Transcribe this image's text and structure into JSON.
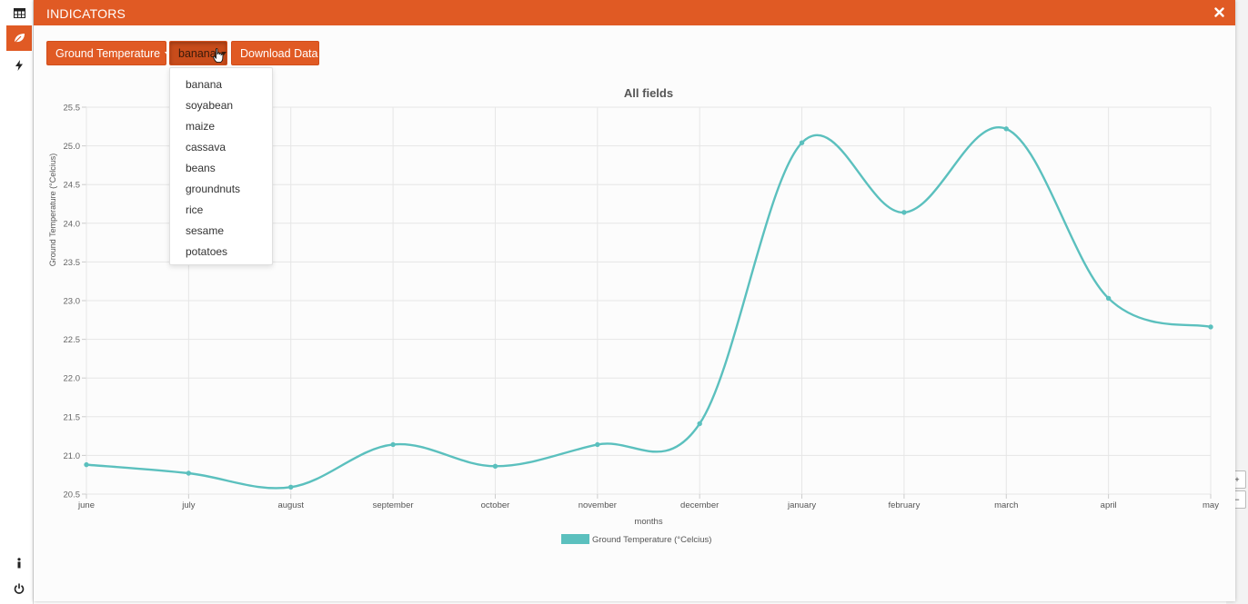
{
  "rail": {
    "items": [
      {
        "icon": "table-icon"
      },
      {
        "icon": "leaf-icon"
      },
      {
        "icon": "lightning-icon"
      },
      {
        "icon": "info-icon"
      },
      {
        "icon": "power-icon"
      }
    ]
  },
  "modal": {
    "title": "INDICATORS",
    "close_icon": "close-icon"
  },
  "toolbar": {
    "indicator_label": "Ground Temperature",
    "crop_label": "banana",
    "download_label": "Download Data"
  },
  "crop_dropdown": {
    "options": [
      "banana",
      "soyabean",
      "maize",
      "cassava",
      "beans",
      "groundnuts",
      "rice",
      "sesame",
      "potatoes"
    ]
  },
  "map_controls": {
    "zoom_in": "+",
    "zoom_out": "−"
  },
  "colors": {
    "accent": "#e05a24",
    "series": "#5bc0be",
    "grid": "#e6e6e6"
  },
  "chart_data": {
    "type": "line",
    "title": "All fields",
    "xlabel": "months",
    "ylabel": "Ground Temperature (°Celcius)",
    "categories": [
      "june",
      "july",
      "august",
      "september",
      "october",
      "november",
      "december",
      "january",
      "february",
      "march",
      "april",
      "may"
    ],
    "series": [
      {
        "name": "Ground Temperature (°Celcius)",
        "values": [
          20.88,
          20.77,
          20.59,
          21.14,
          20.86,
          21.14,
          21.41,
          25.04,
          24.14,
          25.22,
          23.03,
          22.66
        ]
      }
    ],
    "ylim": [
      20.5,
      25.5
    ],
    "yticks": [
      "25.5",
      "25.0",
      "24.5",
      "24.0",
      "23.5",
      "23.0",
      "22.5",
      "22.0",
      "21.5",
      "21.0",
      "20.5"
    ],
    "grid": true,
    "legend_position": "bottom"
  }
}
